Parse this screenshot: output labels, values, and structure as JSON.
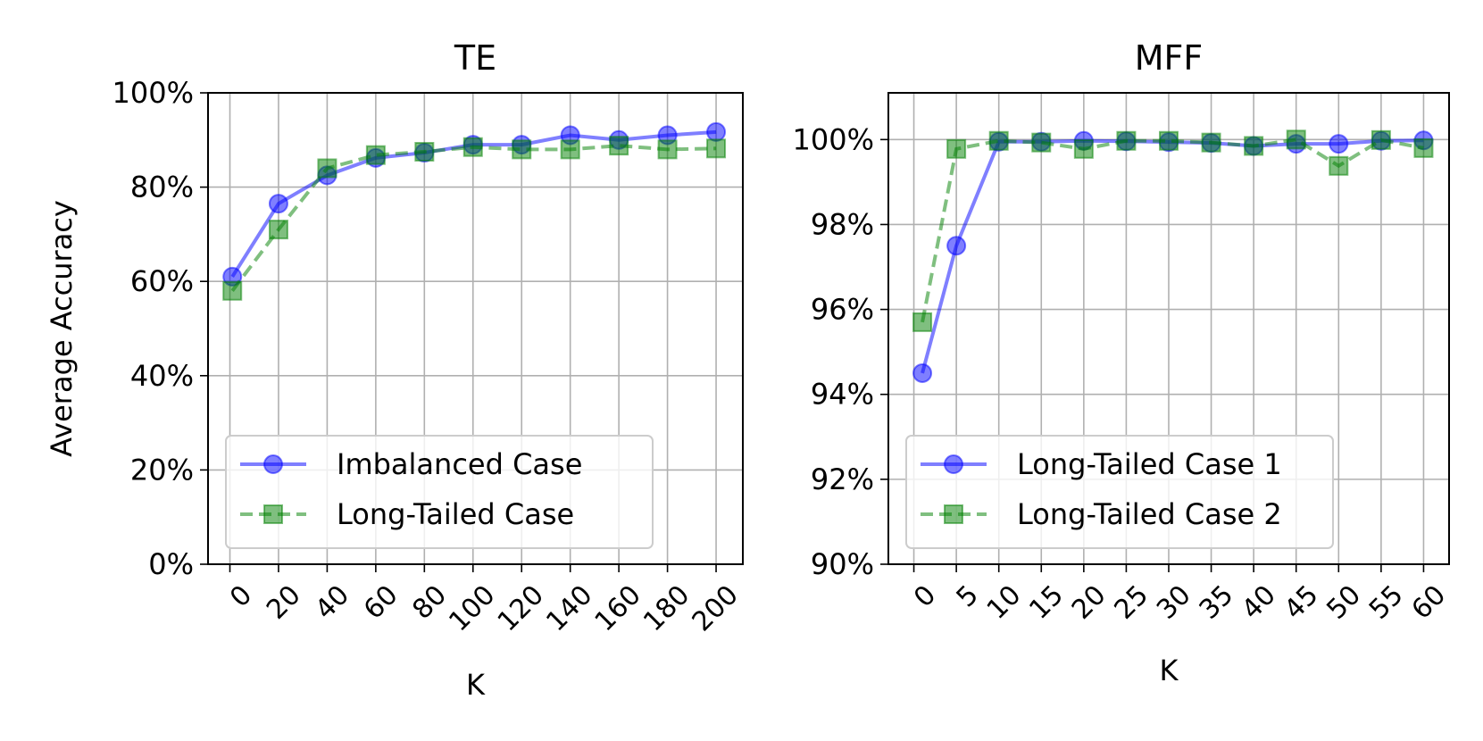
{
  "chart_data": [
    {
      "type": "line",
      "title": "TE",
      "xlabel": "K",
      "ylabel": "Average Accuracy",
      "x": [
        1,
        20,
        40,
        60,
        80,
        100,
        120,
        140,
        160,
        180,
        200
      ],
      "xticks": [
        0,
        20,
        40,
        60,
        80,
        100,
        120,
        140,
        160,
        180,
        200
      ],
      "xtick_labels": [
        "0",
        "20",
        "40",
        "60",
        "80",
        "100",
        "120",
        "140",
        "160",
        "180",
        "200"
      ],
      "xlim": [
        -9,
        211
      ],
      "ylim": [
        0,
        1.0
      ],
      "yticks": [
        0,
        0.2,
        0.4,
        0.6,
        0.8,
        1.0
      ],
      "ytick_labels": [
        "0%",
        "20%",
        "40%",
        "60%",
        "80%",
        "100%"
      ],
      "grid": true,
      "legend_position": "lower-center",
      "series": [
        {
          "name": "Imbalanced Case",
          "values": [
            0.61,
            0.765,
            0.825,
            0.862,
            0.873,
            0.89,
            0.89,
            0.91,
            0.9,
            0.91,
            0.917
          ],
          "color": "#0000ff",
          "marker": "circle",
          "dash": "solid"
        },
        {
          "name": "Long-Tailed Case",
          "values": [
            0.58,
            0.71,
            0.84,
            0.868,
            0.875,
            0.885,
            0.88,
            0.88,
            0.888,
            0.88,
            0.882
          ],
          "color": "#008000",
          "marker": "square",
          "dash": "dashed"
        }
      ]
    },
    {
      "type": "line",
      "title": "MFF",
      "xlabel": "K",
      "ylabel": "",
      "x": [
        1,
        5,
        10,
        15,
        20,
        25,
        30,
        35,
        40,
        45,
        50,
        55,
        60
      ],
      "xticks": [
        0,
        5,
        10,
        15,
        20,
        25,
        30,
        35,
        40,
        45,
        50,
        55,
        60
      ],
      "xtick_labels": [
        "0",
        "5",
        "10",
        "15",
        "20",
        "25",
        "30",
        "35",
        "40",
        "45",
        "50",
        "55",
        "60"
      ],
      "xlim": [
        -3,
        63
      ],
      "ylim": [
        0.9,
        1.011
      ],
      "yticks": [
        0.9,
        0.92,
        0.94,
        0.96,
        0.98,
        1.0
      ],
      "ytick_labels": [
        "90%",
        "92%",
        "94%",
        "96%",
        "98%",
        "100%"
      ],
      "grid": true,
      "legend_position": "lower-center",
      "series": [
        {
          "name": "Long-Tailed Case 1",
          "values": [
            0.945,
            0.975,
            0.9995,
            0.9995,
            0.9997,
            0.9996,
            0.9994,
            0.9992,
            0.9985,
            0.999,
            0.999,
            0.9997,
            0.9998
          ],
          "color": "#0000ff",
          "marker": "circle",
          "dash": "solid"
        },
        {
          "name": "Long-Tailed Case 2",
          "values": [
            0.957,
            0.9978,
            0.9997,
            0.9993,
            0.9978,
            0.9997,
            0.9997,
            0.9993,
            0.9985,
            1.0,
            0.9938,
            0.9999,
            0.998
          ],
          "color": "#008000",
          "marker": "square",
          "dash": "dashed"
        }
      ]
    }
  ]
}
